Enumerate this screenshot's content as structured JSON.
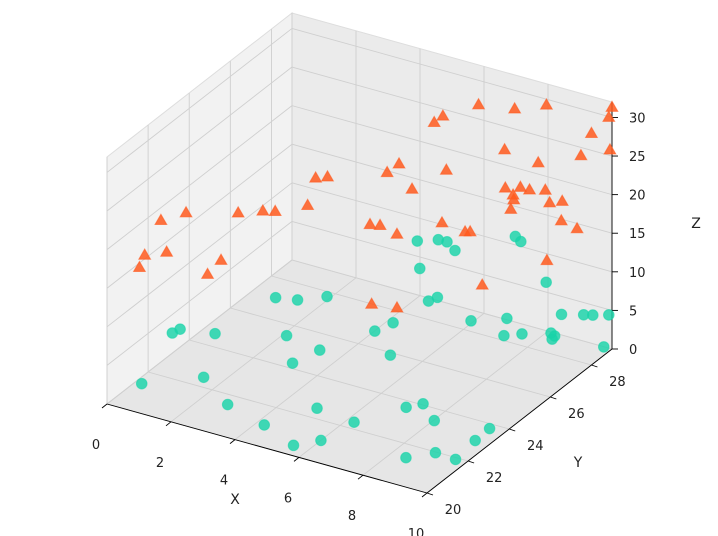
{
  "chart_data": {
    "type": "scatter",
    "projection": "3d",
    "grid": true,
    "xlabel": "X",
    "ylabel": "Y",
    "zlabel": "Z",
    "xlim": [
      0,
      10
    ],
    "ylim": [
      20,
      29
    ],
    "zlim": [
      0,
      32
    ],
    "xticks": [
      "0",
      "2",
      "4",
      "6",
      "8",
      "10"
    ],
    "yticks": [
      "20",
      "22",
      "24",
      "26",
      "28"
    ],
    "zticks": [
      "0",
      "5",
      "10",
      "15",
      "20",
      "25",
      "30"
    ],
    "colors": {
      "series_1": "#19d3a8",
      "series_2": "#ff5a1f"
    },
    "series": [
      {
        "marker": "circle",
        "color": "#19d3a8",
        "points": [
          [
            0.7,
            20.6,
            2.2
          ],
          [
            1.8,
            21.9,
            1.6
          ],
          [
            1.0,
            23.7,
            2.6
          ],
          [
            0.5,
            22.4,
            4.8
          ],
          [
            1.0,
            22.0,
            6.7
          ],
          [
            3.0,
            21.2,
            0.9
          ],
          [
            4.4,
            20.8,
            0.7
          ],
          [
            5.7,
            20.2,
            0.8
          ],
          [
            6.3,
            20.6,
            1.3
          ],
          [
            5.6,
            21.5,
            2.8
          ],
          [
            4.0,
            22.8,
            4.1
          ],
          [
            3.3,
            23.6,
            5.2
          ],
          [
            4.4,
            23.5,
            4.8
          ],
          [
            3.0,
            24.6,
            7.4
          ],
          [
            2.7,
            24.0,
            8.6
          ],
          [
            6.5,
            21.9,
            1.2
          ],
          [
            7.1,
            23.5,
            0.5
          ],
          [
            8.7,
            21.0,
            1.0
          ],
          [
            9.3,
            21.5,
            1.3
          ],
          [
            9.8,
            21.7,
            0.6
          ],
          [
            9.9,
            22.5,
            1.5
          ],
          [
            9.9,
            23.2,
            1.6
          ],
          [
            8.3,
            23.0,
            1.2
          ],
          [
            7.5,
            23.7,
            1.0
          ],
          [
            5.9,
            24.6,
            3.6
          ],
          [
            4.9,
            25.4,
            3.9
          ],
          [
            3.6,
            25.1,
            7.5
          ],
          [
            5.6,
            25.2,
            6.2
          ],
          [
            6.0,
            26.3,
            7.2
          ],
          [
            6.6,
            25.8,
            9.4
          ],
          [
            4.7,
            27.9,
            6.6
          ],
          [
            5.8,
            27.9,
            10.2
          ],
          [
            5.2,
            27.0,
            12.6
          ],
          [
            5.6,
            27.4,
            12.4
          ],
          [
            6.0,
            27.2,
            13.0
          ],
          [
            7.2,
            26.5,
            5.6
          ],
          [
            8.0,
            27.0,
            5.8
          ],
          [
            8.1,
            26.7,
            4.3
          ],
          [
            8.6,
            26.8,
            4.9
          ],
          [
            8.9,
            27.8,
            2.5
          ],
          [
            9.0,
            28.1,
            5.2
          ],
          [
            9.5,
            28.4,
            5.1
          ],
          [
            9.3,
            27.3,
            4.4
          ],
          [
            9.7,
            26.5,
            6.9
          ],
          [
            8.2,
            28.6,
            7.4
          ],
          [
            9.9,
            29.0,
            4.3
          ],
          [
            9.4,
            29.0,
            3.7
          ],
          [
            10.0,
            28.6,
            1.1
          ],
          [
            7.6,
            28.3,
            12.6
          ],
          [
            7.3,
            28.5,
            12.5
          ]
        ]
      },
      {
        "marker": "triangle",
        "color": "#ff5a1f",
        "points": [
          [
            0.5,
            20.8,
            16.6
          ],
          [
            0.6,
            20.9,
            18.1
          ],
          [
            0.9,
            21.5,
            17.6
          ],
          [
            0.4,
            22.0,
            20.1
          ],
          [
            0.8,
            22.6,
            20.3
          ],
          [
            2.5,
            21.0,
            17.6
          ],
          [
            2.6,
            21.5,
            18.5
          ],
          [
            2.3,
            22.8,
            21.6
          ],
          [
            3.2,
            23.2,
            22.0
          ],
          [
            3.7,
            24.0,
            21.7
          ],
          [
            3.2,
            22.6,
            23.3
          ],
          [
            4.4,
            23.3,
            27.5
          ],
          [
            5.2,
            24.7,
            19.5
          ],
          [
            5.0,
            25.5,
            17.5
          ],
          [
            5.4,
            25.7,
            16.4
          ],
          [
            5.1,
            26.9,
            19.4
          ],
          [
            4.9,
            26.0,
            23.2
          ],
          [
            5.4,
            25.8,
            25.3
          ],
          [
            6.1,
            26.8,
            16.4
          ],
          [
            5.6,
            27.2,
            28.0
          ],
          [
            6.0,
            27.0,
            29.7
          ],
          [
            6.6,
            27.8,
            30.2
          ],
          [
            7.6,
            28.0,
            30.4
          ],
          [
            8.4,
            28.3,
            31.2
          ],
          [
            7.8,
            27.2,
            27.0
          ],
          [
            6.3,
            24.3,
            10.8
          ],
          [
            5.7,
            24.0,
            11.2
          ],
          [
            8.0,
            25.8,
            12.6
          ],
          [
            7.4,
            25.9,
            18.6
          ],
          [
            8.4,
            26.3,
            24.6
          ],
          [
            8.6,
            26.4,
            23.1
          ],
          [
            8.9,
            26.7,
            24.1
          ],
          [
            9.2,
            27.0,
            23.8
          ],
          [
            9.4,
            26.9,
            22.6
          ],
          [
            9.6,
            27.2,
            22.4
          ],
          [
            9.7,
            27.0,
            20.4
          ],
          [
            10.0,
            27.3,
            19.1
          ],
          [
            9.7,
            26.3,
            16.7
          ],
          [
            8.7,
            26.1,
            22.6
          ],
          [
            9.0,
            26.1,
            25.8
          ],
          [
            8.9,
            25.9,
            25.1
          ],
          [
            9.3,
            26.5,
            28.5
          ],
          [
            8.2,
            24.9,
            21.6
          ],
          [
            7.2,
            25.3,
            27.6
          ],
          [
            10.0,
            28.0,
            30.0
          ],
          [
            9.8,
            27.8,
            27.3
          ],
          [
            10.0,
            28.9,
            26.0
          ],
          [
            9.9,
            29.0,
            29.9
          ],
          [
            10.0,
            29.0,
            31.3
          ],
          [
            4.0,
            24.5,
            24.7
          ]
        ]
      }
    ]
  }
}
